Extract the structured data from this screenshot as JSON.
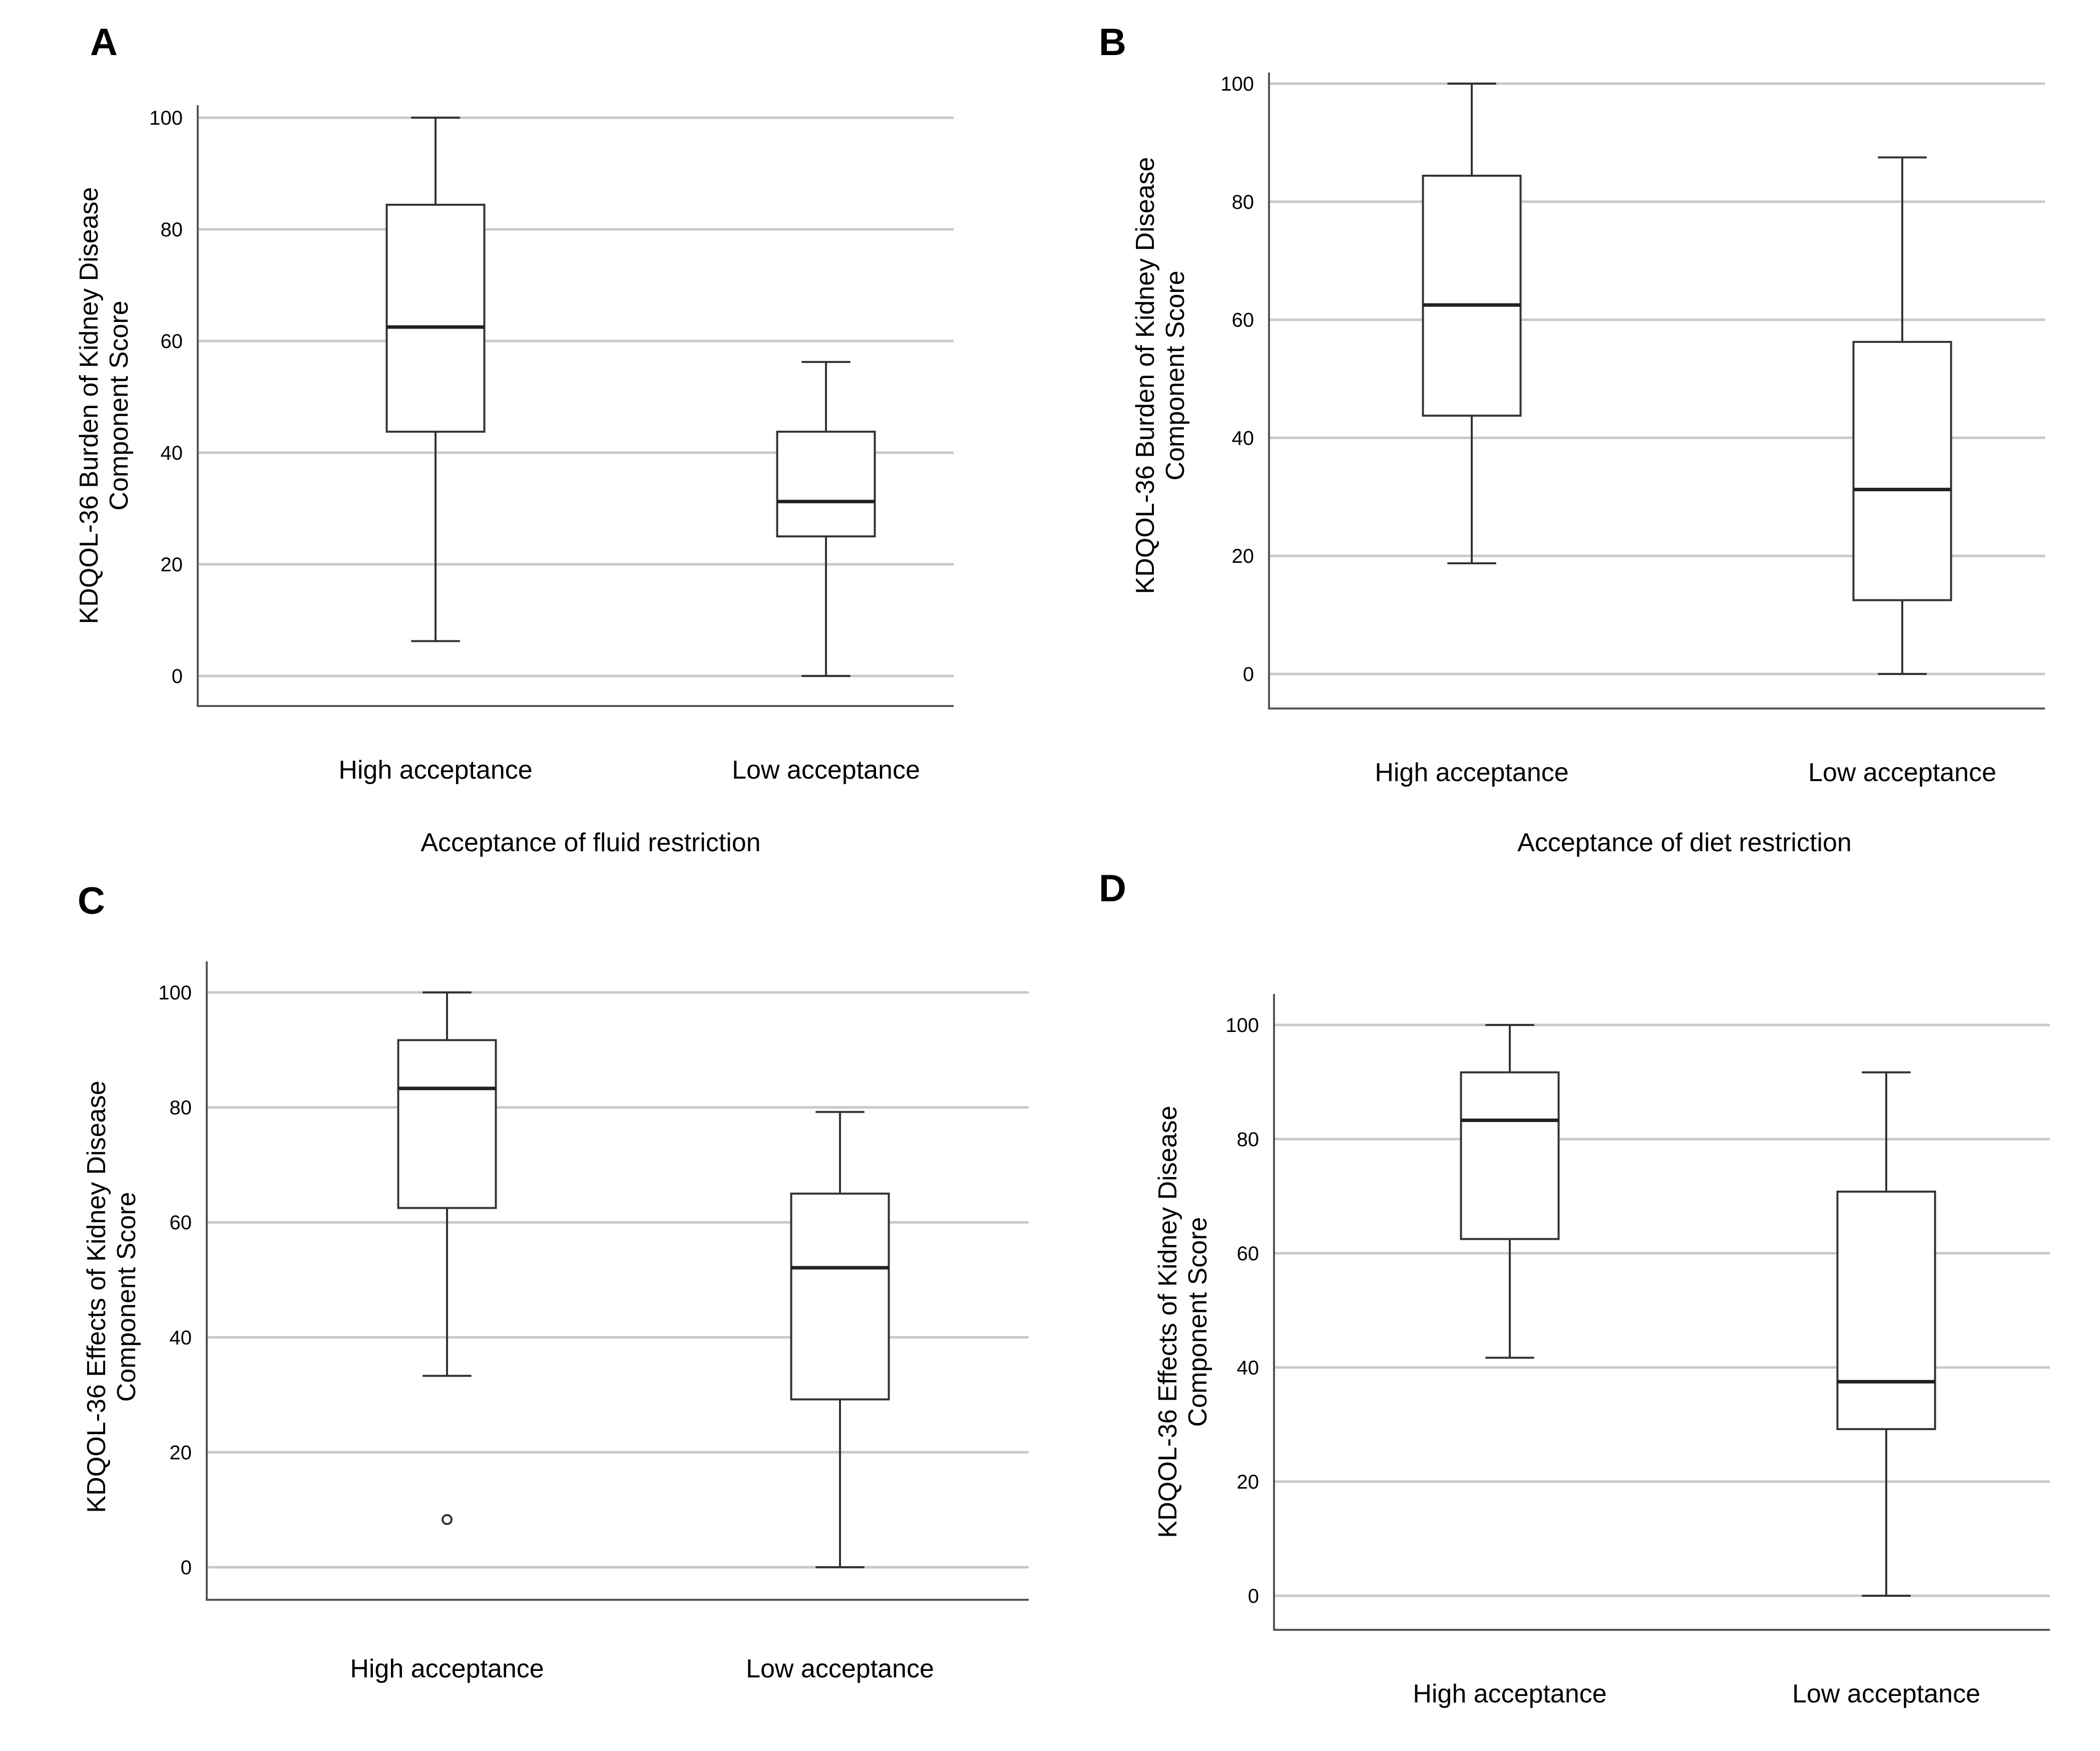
{
  "chart_data": [
    {
      "panel": "A",
      "type": "box",
      "ylabel": [
        "KDQOL-36 Burden of Kidney Disease",
        "Component Score"
      ],
      "xlabel": "Acceptance of fluid restriction",
      "categories": [
        "High acceptance",
        "Low acceptance"
      ],
      "yticks": [
        0,
        20,
        40,
        60,
        80,
        100
      ],
      "ylim": [
        -6,
        102
      ],
      "boxes": [
        {
          "min": 6.25,
          "q1": 43.75,
          "median": 62.5,
          "q3": 84.4,
          "max": 100,
          "outliers": []
        },
        {
          "min": 0,
          "q1": 25,
          "median": 31.25,
          "q3": 43.75,
          "max": 56.25,
          "outliers": []
        }
      ]
    },
    {
      "panel": "B",
      "type": "box",
      "ylabel": [
        "KDQOL-36 Burden of Kidney Disease",
        "Component Score"
      ],
      "xlabel": "Acceptance of diet restriction",
      "categories": [
        "High acceptance",
        "Low acceptance"
      ],
      "yticks": [
        0,
        20,
        40,
        60,
        80,
        100
      ],
      "ylim": [
        -6,
        102
      ],
      "boxes": [
        {
          "min": 18.75,
          "q1": 43.75,
          "median": 62.5,
          "q3": 84.4,
          "max": 100,
          "outliers": []
        },
        {
          "min": 0,
          "q1": 12.5,
          "median": 31.25,
          "q3": 56.25,
          "max": 87.5,
          "outliers": []
        }
      ]
    },
    {
      "panel": "C",
      "type": "box",
      "ylabel": [
        "KDQOL-36 Effects of Kidney Disease",
        "Component Score"
      ],
      "xlabel": "",
      "categories": [
        "High acceptance",
        "Low acceptance"
      ],
      "yticks": [
        0,
        20,
        40,
        60,
        80,
        100
      ],
      "ylim": [
        -6,
        104
      ],
      "boxes": [
        {
          "min": 33.3,
          "q1": 62.5,
          "median": 83.3,
          "q3": 91.7,
          "max": 100,
          "outliers": [
            8.3
          ]
        },
        {
          "min": 0,
          "q1": 29.2,
          "median": 52.1,
          "q3": 65,
          "max": 79.2,
          "outliers": []
        }
      ]
    },
    {
      "panel": "D",
      "type": "box",
      "ylabel": [
        "KDQOL-36 Effects of Kidney Disease",
        "Component Score"
      ],
      "xlabel": "",
      "categories": [
        "High acceptance",
        "Low acceptance"
      ],
      "yticks": [
        0,
        20,
        40,
        60,
        80,
        100
      ],
      "ylim": [
        -6,
        106
      ],
      "boxes": [
        {
          "min": 41.7,
          "q1": 62.5,
          "median": 83.3,
          "q3": 91.7,
          "max": 100,
          "outliers": []
        },
        {
          "min": 0,
          "q1": 29.2,
          "median": 37.5,
          "q3": 70.8,
          "max": 91.7,
          "outliers": []
        }
      ]
    }
  ]
}
